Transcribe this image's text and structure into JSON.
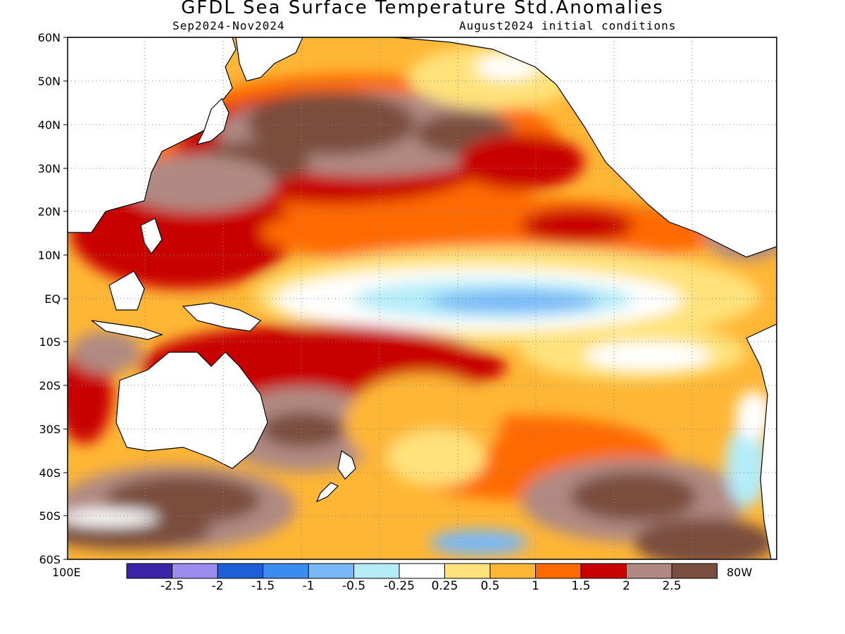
{
  "header": {
    "title": "GFDL Sea Surface Temperature Std.Anomalies",
    "period": "Sep2024-Nov2024",
    "init": "August2024 initial conditions"
  },
  "axes": {
    "lat_labels": [
      "60N",
      "50N",
      "40N",
      "30N",
      "20N",
      "10N",
      "EQ",
      "10S",
      "20S",
      "30S",
      "40S",
      "50S",
      "60S"
    ],
    "lon_left": "100E",
    "lon_right": "80W"
  },
  "colorbar": {
    "colors": [
      "#3b24a8",
      "#9c8cf0",
      "#1e5fd8",
      "#3c8cf0",
      "#78b8f8",
      "#b4ecf8",
      "#ffffff",
      "#ffe27a",
      "#ffb634",
      "#ff6a00",
      "#c80000",
      "#b08a82",
      "#7a4e3e"
    ],
    "labels": [
      "-2.5",
      "-2",
      "-1.5",
      "-1",
      "-0.5",
      "-0.25",
      "0.25",
      "0.5",
      "1",
      "1.5",
      "2",
      "2.5"
    ]
  },
  "legend_colors": {
    "land": "#ffffff",
    "coast": "#000000"
  }
}
